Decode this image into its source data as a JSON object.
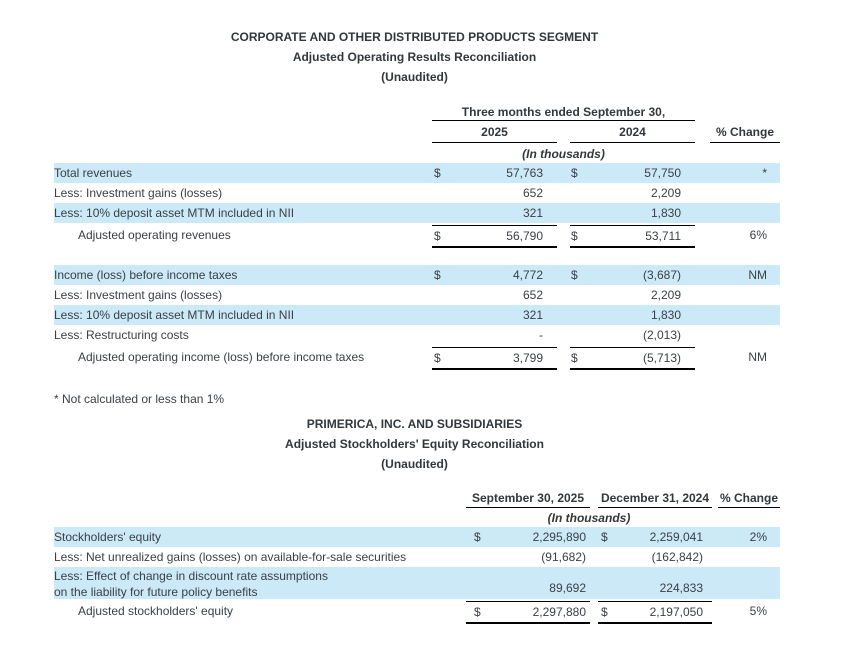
{
  "colors": {
    "highlight": "#cbe9f7",
    "text": "#3a3f45",
    "rule": "#000000"
  },
  "t1": {
    "title1": "CORPORATE AND OTHER DISTRIBUTED PRODUCTS SEGMENT",
    "title2": "Adjusted Operating Results Reconciliation",
    "title3": "(Unaudited)",
    "span_header": "Three months ended September 30,",
    "years": [
      "2025",
      "2024"
    ],
    "pct_header": "% Change",
    "units": "(In thousands)",
    "sections": [
      {
        "rows": [
          {
            "label": "Total revenues",
            "d1": "$",
            "v1": "57,763",
            "d2": "$",
            "v2": "57,750",
            "pct": "*",
            "hl": true
          },
          {
            "label": "Less: Investment gains (losses)",
            "v1": "652",
            "v2": "2,209"
          },
          {
            "label": "Less: 10% deposit asset MTM included in NII",
            "v1": "321",
            "v2": "1,830",
            "hl": true
          },
          {
            "label": "Adjusted operating revenues",
            "d1": "$",
            "v1": "56,790",
            "d2": "$",
            "v2": "53,711",
            "pct": "6%",
            "total": true
          }
        ]
      },
      {
        "rows": [
          {
            "label": "Income (loss) before income taxes",
            "d1": "$",
            "v1": "4,772",
            "d2": "$",
            "v2": "(3,687)",
            "pct": "NM",
            "hl": true
          },
          {
            "label": "Less: Investment gains (losses)",
            "v1": "652",
            "v2": "2,209"
          },
          {
            "label": "Less: 10% deposit asset MTM included in NII",
            "v1": "321",
            "v2": "1,830",
            "hl": true
          },
          {
            "label": "Less: Restructuring costs",
            "v1": "-",
            "v2": "(2,013)"
          },
          {
            "label": "Adjusted operating income (loss) before income taxes",
            "d1": "$",
            "v1": "3,799",
            "d2": "$",
            "v2": "(5,713)",
            "pct": "NM",
            "total": true
          }
        ]
      }
    ],
    "footnote": "* Not calculated or less than 1%"
  },
  "t2": {
    "title1": "PRIMERICA, INC. AND SUBSIDIARIES",
    "title2": "Adjusted Stockholders' Equity Reconciliation",
    "title3": "(Unaudited)",
    "cols": [
      "September 30, 2025",
      "December 31, 2024"
    ],
    "pct_header": "% Change",
    "units": "(In thousands)",
    "rows": [
      {
        "label": "Stockholders' equity",
        "d1": "$",
        "v1": "2,295,890",
        "d2": "$",
        "v2": "2,259,041",
        "pct": "2%",
        "hl": true
      },
      {
        "label": "Less: Net unrealized gains (losses) on available-for-sale securities",
        "v1": "(91,682)",
        "v2": "(162,842)"
      },
      {
        "label": "Less: Effect of change in discount rate assumptions",
        "label2": "on the liability for future policy benefits",
        "v1": "89,692",
        "v2": "224,833",
        "hl": true
      },
      {
        "label": "Adjusted stockholders' equity",
        "d1": "$",
        "v1": "2,297,880",
        "d2": "$",
        "v2": "2,197,050",
        "pct": "5%",
        "total": true
      }
    ]
  }
}
